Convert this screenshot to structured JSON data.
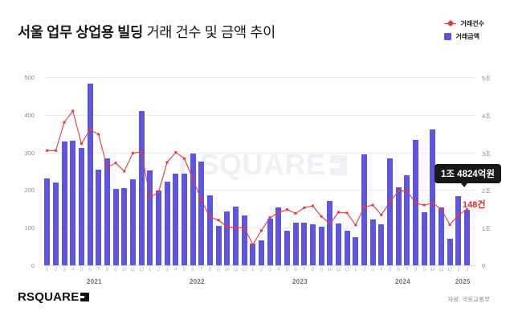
{
  "header": {
    "title_bold": "서울 업무 상업용 빌딩",
    "title_rest": " 거래 건수 및 금액 추이",
    "legend": [
      {
        "label": "거래건수",
        "color": "#e53a40",
        "marker": "line-diamond"
      },
      {
        "label": "거래금액",
        "color": "#5b55e2",
        "marker": "square"
      }
    ]
  },
  "chart_data": {
    "type": "bar-line-combo",
    "title": "서울 업무 상업용 빌딩 거래 건수 및 금액 추이",
    "x": [
      "2021-1",
      "2021-2",
      "2021-3",
      "2021-4",
      "2021-5",
      "2021-6",
      "2021-7",
      "2021-8",
      "2021-9",
      "2021-10",
      "2021-11",
      "2021-12",
      "2022-1",
      "2022-2",
      "2022-3",
      "2022-4",
      "2022-5",
      "2022-6",
      "2022-7",
      "2022-8",
      "2022-9",
      "2022-10",
      "2022-11",
      "2022-12",
      "2023-1",
      "2023-2",
      "2023-3",
      "2023-4",
      "2023-5",
      "2023-6",
      "2023-7",
      "2023-8",
      "2023-9",
      "2023-10",
      "2023-11",
      "2023-12",
      "2024-1",
      "2024-2",
      "2024-3",
      "2024-4",
      "2024-5",
      "2024-6",
      "2024-7",
      "2024-8",
      "2024-9",
      "2024-10",
      "2024-11",
      "2024-12",
      "2025-1",
      "2025-2"
    ],
    "years": [
      "2021",
      "2022",
      "2023",
      "2024",
      "2025"
    ],
    "series": [
      {
        "name": "거래건수",
        "type": "line",
        "axis": "left",
        "color": "#e53a40",
        "unit": "건",
        "values": [
          305,
          305,
          380,
          410,
          323,
          360,
          348,
          260,
          272,
          250,
          298,
          302,
          181,
          194,
          274,
          300,
          284,
          230,
          173,
          128,
          120,
          102,
          100,
          100,
          55,
          92,
          127,
          140,
          148,
          138,
          153,
          158,
          130,
          110,
          141,
          139,
          107,
          155,
          160,
          134,
          169,
          197,
          198,
          165,
          160,
          166,
          148,
          108,
          134,
          148
        ]
      },
      {
        "name": "거래금액",
        "type": "bar",
        "axis": "right",
        "color": "#5b55e2",
        "unit": "조원",
        "values": [
          2.3,
          2.21,
          3.3,
          3.32,
          3.11,
          4.84,
          2.54,
          2.85,
          2.04,
          2.05,
          2.29,
          4.11,
          2.53,
          1.98,
          2.22,
          2.44,
          2.44,
          2.97,
          2.76,
          1.85,
          1.05,
          1.43,
          1.55,
          1.33,
          0.57,
          0.66,
          1.23,
          1.53,
          0.91,
          1.13,
          1.13,
          1.09,
          1.02,
          1.71,
          1.12,
          0.91,
          0.75,
          2.95,
          1.21,
          1.1,
          2.85,
          2.08,
          2.4,
          3.33,
          1.42,
          3.61,
          1.53,
          0.71,
          1.83,
          1.48
        ]
      }
    ],
    "left_axis": {
      "ticks": [
        "500",
        "400",
        "300",
        "200",
        "100",
        "0"
      ],
      "min": 0,
      "max": 500
    },
    "right_axis": {
      "ticks": [
        "5조",
        "4조",
        "3조",
        "2조",
        "1조",
        "0"
      ],
      "min": 0,
      "max": 5
    },
    "grid": "horizontal",
    "legend_position": "top-right",
    "annotation": {
      "target": "2025-2",
      "amount_label": "1조 4824억원",
      "count_label": "148건"
    }
  },
  "watermark": {
    "text": "RSQUARE"
  },
  "footer": {
    "logo_text": "RSQUARE",
    "source": "자료: 국토교통부"
  }
}
